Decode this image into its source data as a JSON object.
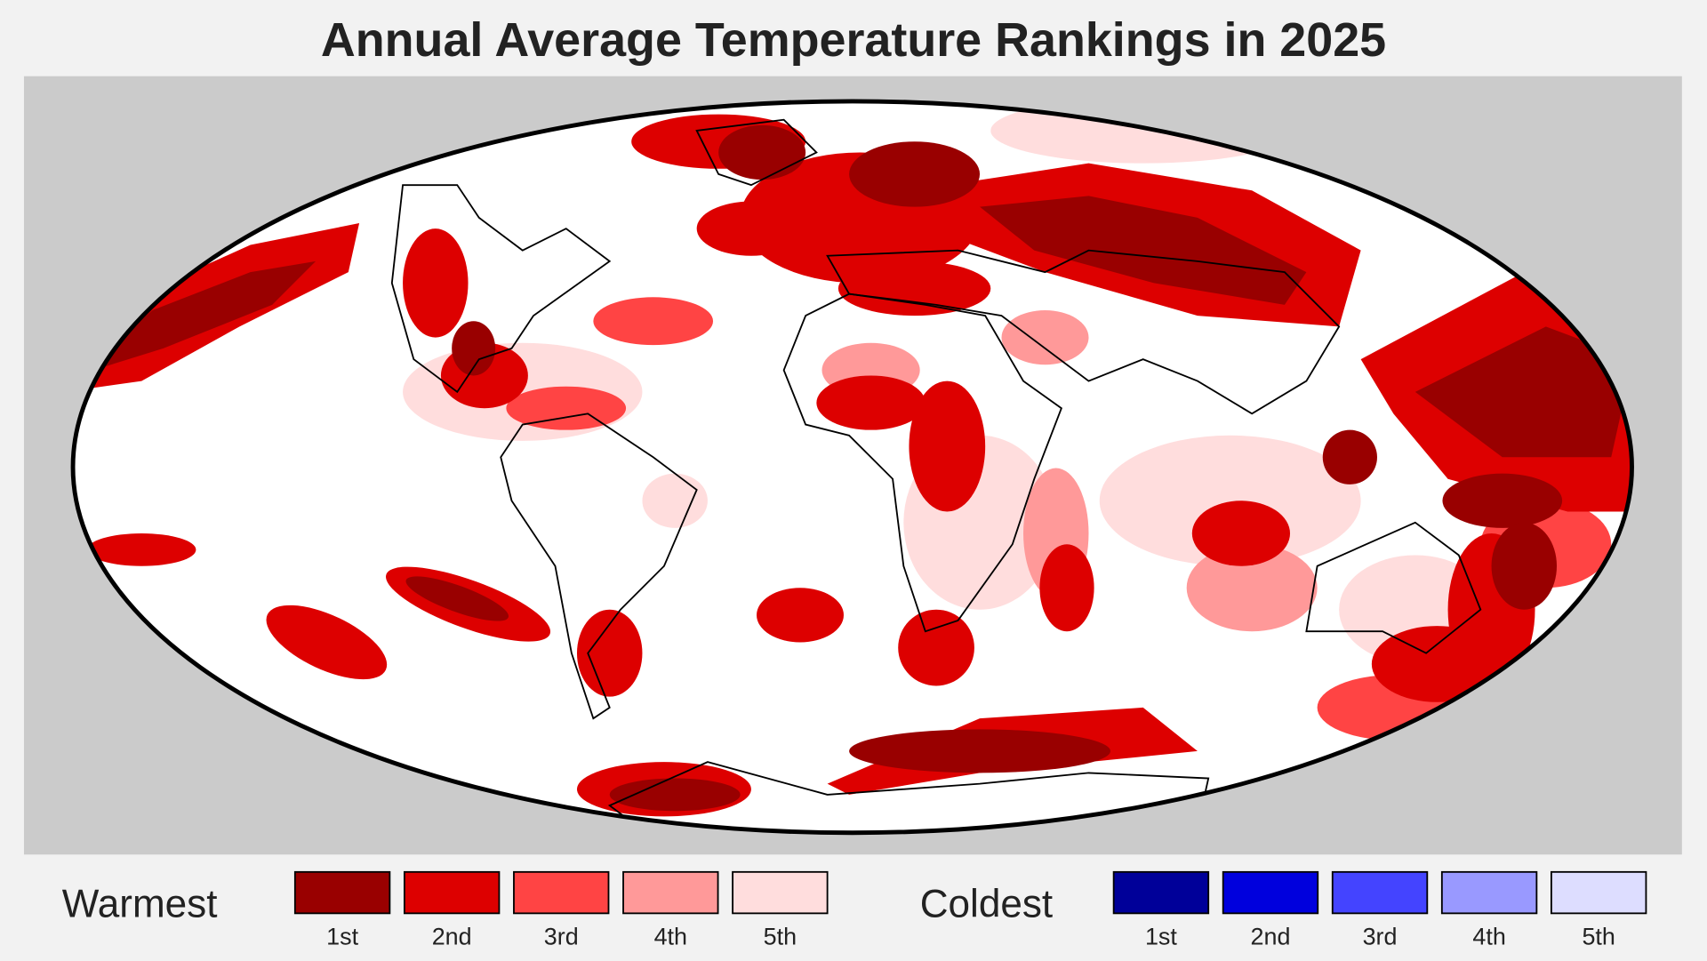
{
  "header": {
    "title": "Annual Average Temperature Rankings in 2025"
  },
  "legend": [
    {
      "label": "Warmest",
      "items": [
        {
          "label": "1st",
          "color": "#990000"
        },
        {
          "label": "2nd",
          "color": "#dd0000"
        },
        {
          "label": "3rd",
          "color": "#ff4444"
        },
        {
          "label": "4th",
          "color": "#ff9999"
        },
        {
          "label": "5th",
          "color": "#ffdddd"
        }
      ]
    },
    {
      "label": "Coldest",
      "items": [
        {
          "label": "1st",
          "color": "#000099"
        },
        {
          "label": "2nd",
          "color": "#0000dd"
        },
        {
          "label": "3rd",
          "color": "#4444ff"
        },
        {
          "label": "4th",
          "color": "#9999ff"
        },
        {
          "label": "5th",
          "color": "#ddddff"
        }
      ]
    }
  ]
}
